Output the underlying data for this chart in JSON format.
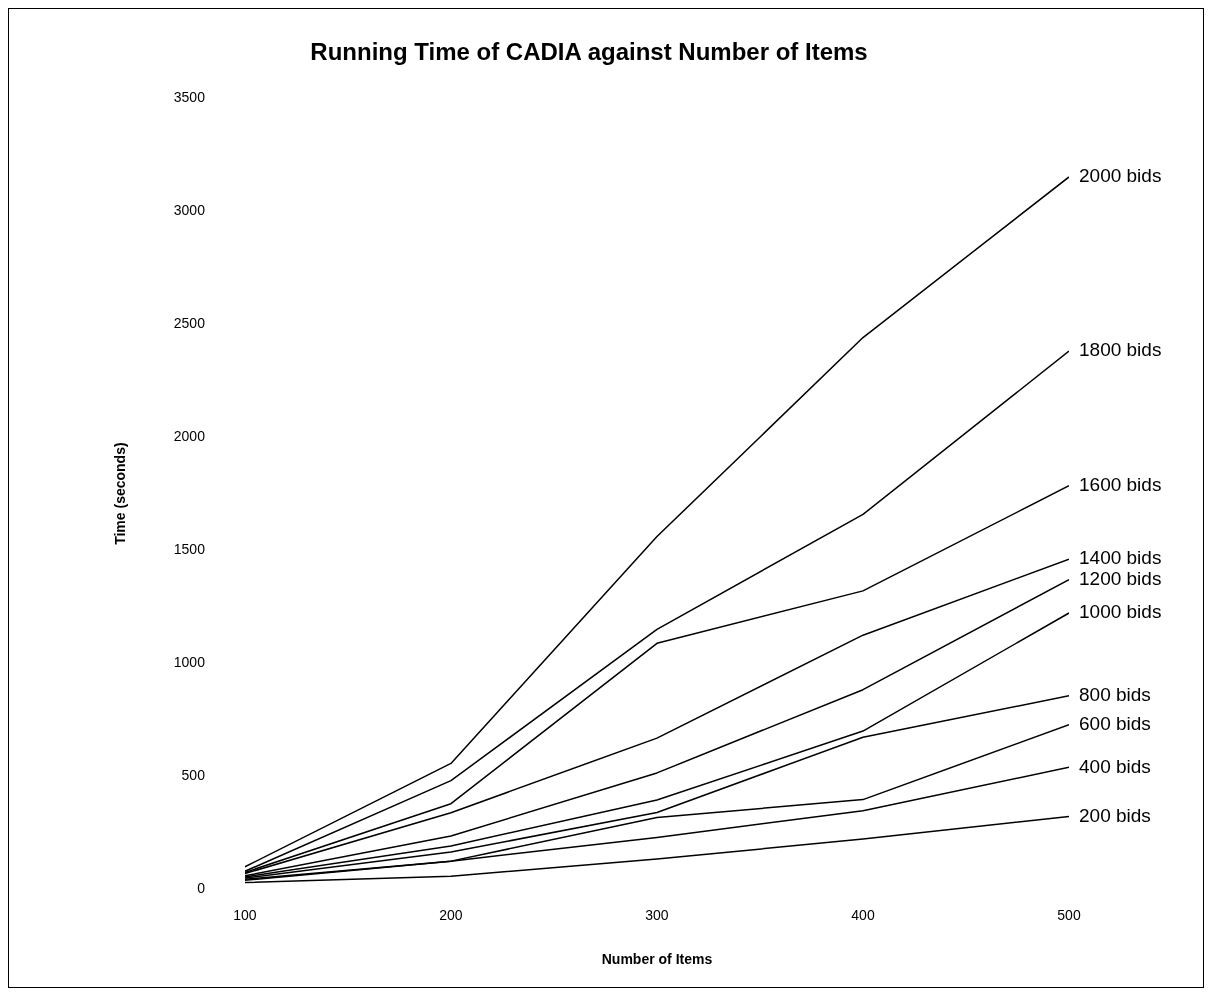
{
  "chart_data": {
    "type": "line",
    "title": "Running Time of CADIA against Number of Items",
    "xlabel": "Number of Items",
    "ylabel": "Time (seconds)",
    "x": [
      100,
      200,
      300,
      400,
      500
    ],
    "xlim": [
      100,
      500
    ],
    "xticks": [
      100,
      200,
      300,
      400,
      500
    ],
    "ylim": [
      0,
      3500
    ],
    "yticks": [
      0,
      500,
      1000,
      1500,
      2000,
      2500,
      3000,
      3500
    ],
    "grid": false,
    "legend": false,
    "marker": "none",
    "line_style": "solid",
    "series": [
      {
        "name": "2000 bids",
        "color": "#000000",
        "values": [
          100,
          557,
          1560,
          2440,
          3150
        ]
      },
      {
        "name": "1800 bids",
        "color": "#000000",
        "values": [
          80,
          481,
          1150,
          1658,
          2380
        ]
      },
      {
        "name": "1600 bids",
        "color": "#000000",
        "values": [
          75,
          379,
          1088,
          1320,
          1785
        ]
      },
      {
        "name": "1400 bids",
        "color": "#000000",
        "values": [
          70,
          339,
          669,
          1124,
          1460
        ]
      },
      {
        "name": "1200 bids",
        "color": "#000000",
        "values": [
          60,
          236,
          515,
          883,
          1370
        ]
      },
      {
        "name": "1000 bids",
        "color": "#000000",
        "values": [
          55,
          192,
          395,
          700,
          1222
        ]
      },
      {
        "name": "800 bids",
        "color": "#000000",
        "values": [
          50,
          165,
          340,
          673,
          856
        ]
      },
      {
        "name": "600 bids",
        "color": "#000000",
        "values": [
          45,
          125,
          318,
          397,
          728
        ]
      },
      {
        "name": "400 bids",
        "color": "#000000",
        "values": [
          40,
          125,
          230,
          348,
          540
        ]
      },
      {
        "name": "200 bids",
        "color": "#000000",
        "values": [
          30,
          58,
          134,
          223,
          322
        ]
      }
    ]
  }
}
